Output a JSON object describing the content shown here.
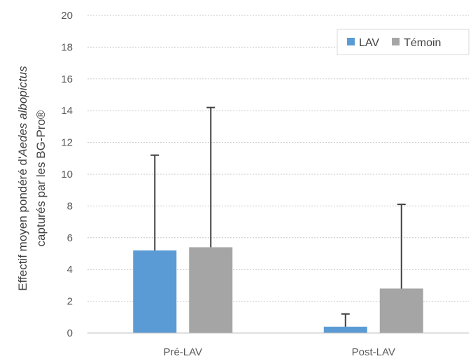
{
  "chart_data": {
    "type": "bar",
    "categories": [
      "Pré-LAV",
      "Post-LAV"
    ],
    "series": [
      {
        "name": "LAV",
        "color": "#5B9BD5",
        "values": [
          5.2,
          0.4
        ],
        "error_plus": [
          6.0,
          0.8
        ]
      },
      {
        "name": "Témoin",
        "color": "#A5A5A5",
        "values": [
          5.4,
          2.8
        ],
        "error_plus": [
          8.8,
          5.3
        ]
      }
    ],
    "ylabel_line1_prefix": "Effectif moyen pondéré d'",
    "ylabel_line1_italic": "Aedes albopictus",
    "ylabel_line2": "capturés par les BG-Pro®",
    "ylim": [
      0,
      20
    ],
    "yticks": [
      0,
      2,
      4,
      6,
      8,
      10,
      12,
      14,
      16,
      18,
      20
    ],
    "grid": true,
    "legend_position": "top-right",
    "error_bar_color": "#404040"
  }
}
